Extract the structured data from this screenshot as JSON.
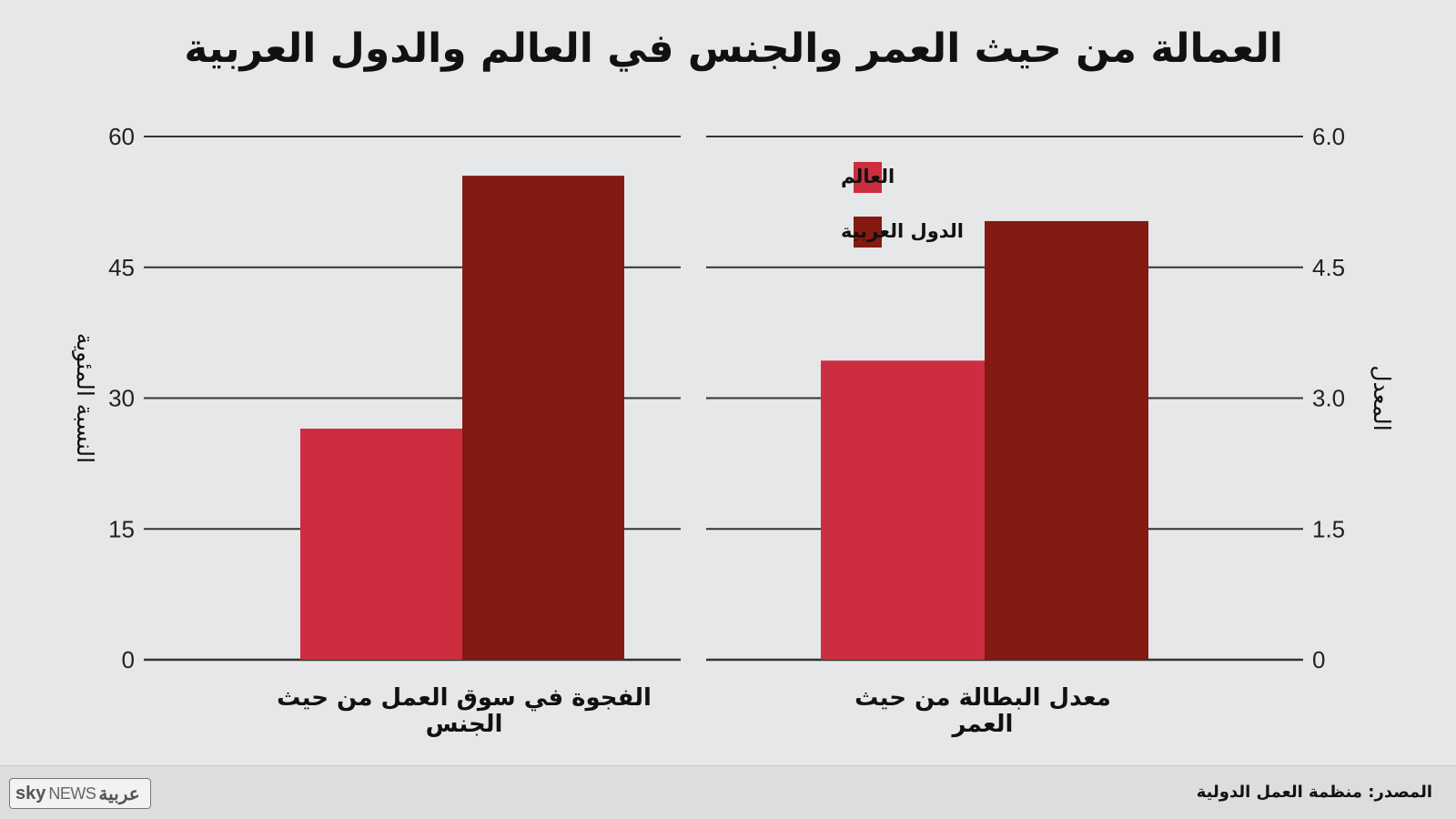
{
  "title": "العمالة من حيث العمر والجنس في العالم والدول العربية",
  "source": "المصدر: منظمة العمل الدولية",
  "logo": {
    "sky": "sky",
    "news": "NEWS",
    "arabic": "عربية"
  },
  "legend": [
    {
      "label": "العالم",
      "color": "#cc2e3f"
    },
    {
      "label": "الدول العربية",
      "color": "#841a12"
    }
  ],
  "colors": {
    "world": "#cc2e3f",
    "arab": "#841a12",
    "grid": "#333333",
    "background": "#e6e7e8"
  },
  "chart_data": [
    {
      "type": "bar",
      "categories": [
        "الفجوة في سوق العمل من حيث الجنس"
      ],
      "category_lines": [
        "الفجوة في سوق العمل من حيث",
        "الجنس"
      ],
      "series": [
        {
          "name": "العالم",
          "values": [
            26.5
          ]
        },
        {
          "name": "الدول العربية",
          "values": [
            55.5
          ]
        }
      ],
      "ylabel": "النسبة المئوية",
      "ylim": [
        0,
        60
      ],
      "yticks": [
        "0",
        "15",
        "30",
        "45",
        "60"
      ],
      "ytick_values": [
        0,
        15,
        30,
        45,
        60
      ],
      "axis_side": "left",
      "grid": true
    },
    {
      "type": "bar",
      "categories": [
        "معدل البطالة من حيث العمر"
      ],
      "category_lines": [
        "معدل البطالة من حيث",
        "العمر"
      ],
      "series": [
        {
          "name": "العالم",
          "values": [
            3.43
          ]
        },
        {
          "name": "الدول العربية",
          "values": [
            5.03
          ]
        }
      ],
      "ylabel": "المعدل",
      "ylim": [
        0,
        6
      ],
      "yticks": [
        "0",
        "1.5",
        "3.0",
        "4.5",
        "6.0"
      ],
      "ytick_values": [
        0,
        1.5,
        3.0,
        4.5,
        6.0
      ],
      "axis_side": "right",
      "grid": true,
      "legend_position": "top-left"
    }
  ]
}
